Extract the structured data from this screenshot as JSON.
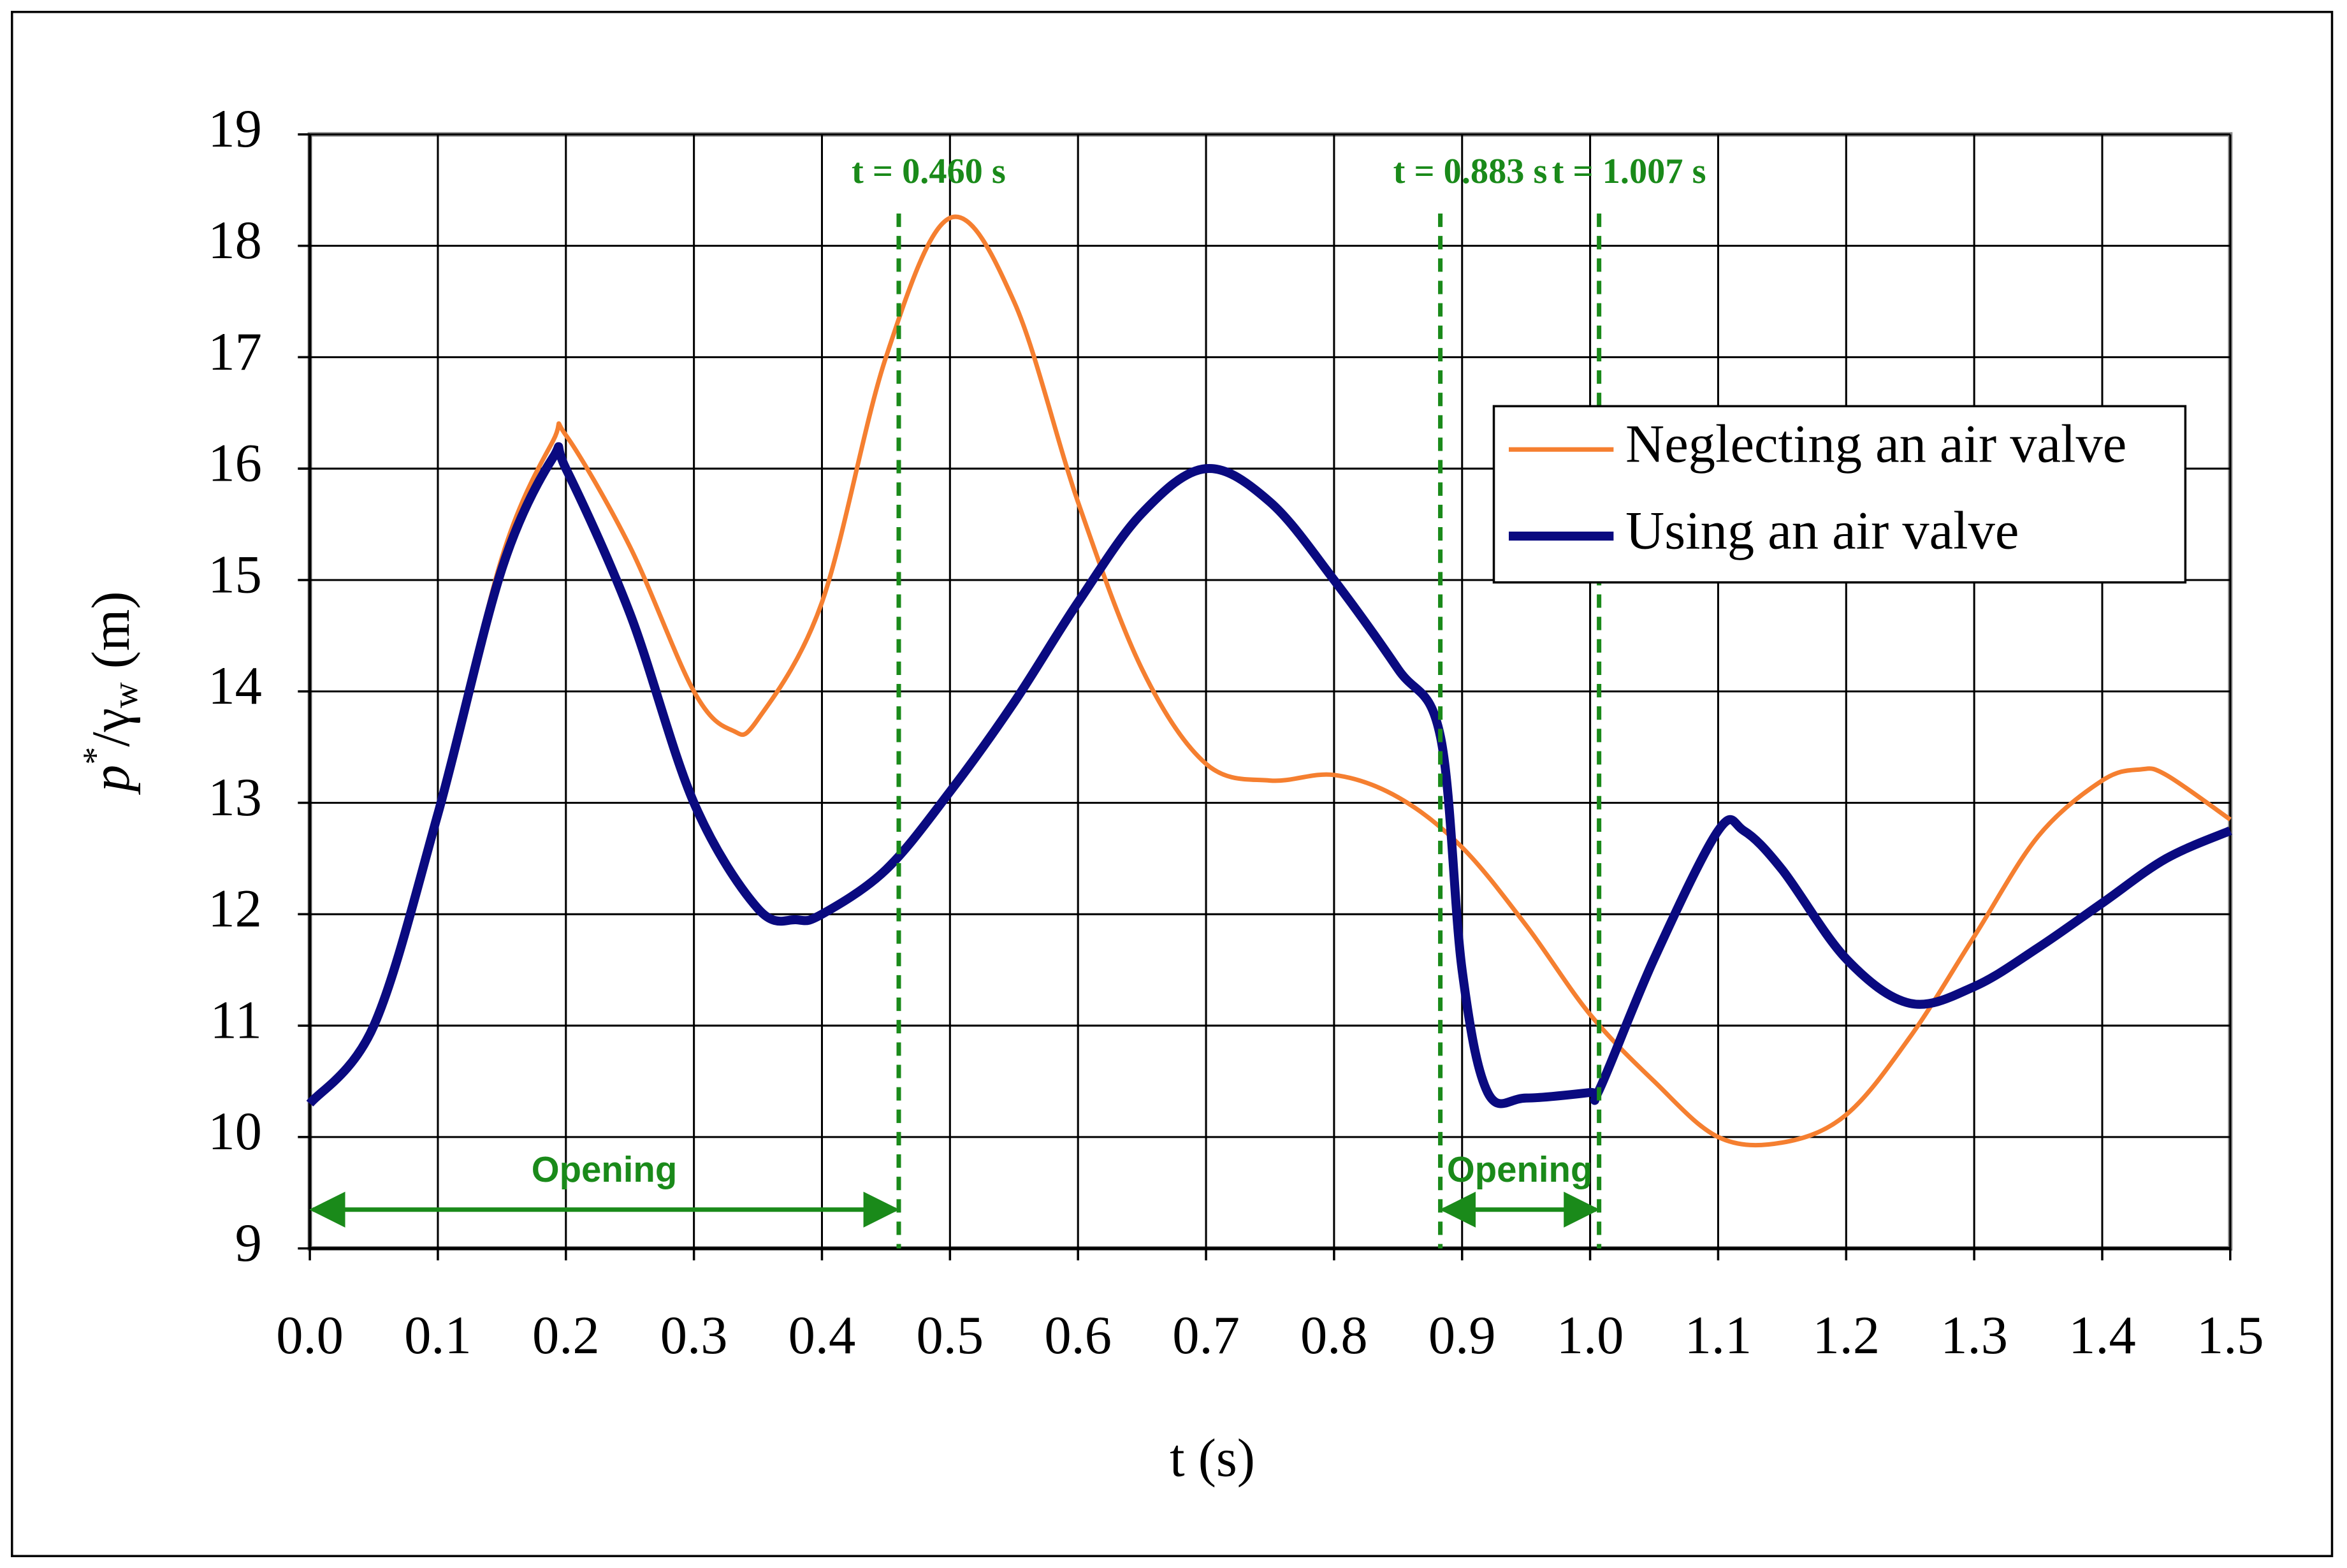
{
  "chart_data": {
    "type": "line",
    "x_label": "t (s)",
    "y_label_parts": [
      "p",
      "*",
      "/γ",
      "w",
      " (m)"
    ],
    "xlim": [
      0,
      1.5
    ],
    "ylim": [
      9,
      19
    ],
    "xticks": [
      {
        "value": 0,
        "label": "0.0"
      },
      0.1,
      0.2,
      0.3,
      0.4,
      0.5,
      0.6,
      0.7,
      0.8,
      0.9,
      {
        "value": 1,
        "label": "1.0"
      },
      1.1,
      1.2,
      1.3,
      1.4,
      1.5
    ],
    "yticks": [
      9,
      10,
      11,
      12,
      13,
      14,
      15,
      16,
      17,
      18,
      19
    ],
    "grid": true,
    "legend_position": "upper right",
    "series": [
      {
        "name": "Neglecting an air valve",
        "color": "#f57f30",
        "width": 3,
        "x": [
          0,
          0.05,
          0.1,
          0.15,
          0.19,
          0.2,
          0.25,
          0.3,
          0.33,
          0.35,
          0.4,
          0.45,
          0.5,
          0.55,
          0.6,
          0.65,
          0.7,
          0.75,
          0.8,
          0.85,
          0.9,
          0.95,
          1.0,
          1.05,
          1.1,
          1.15,
          1.2,
          1.25,
          1.3,
          1.35,
          1.4,
          1.43,
          1.45,
          1.5
        ],
        "values": [
          10.3,
          11.0,
          12.9,
          15.2,
          16.25,
          16.3,
          15.3,
          14.0,
          13.65,
          13.75,
          14.8,
          17.0,
          18.25,
          17.5,
          15.7,
          14.2,
          13.35,
          13.2,
          13.25,
          13.05,
          12.6,
          11.9,
          11.1,
          10.5,
          10.0,
          9.95,
          10.2,
          10.9,
          11.8,
          12.7,
          13.2,
          13.3,
          13.25,
          12.85
        ]
      },
      {
        "name": "Using an air valve",
        "color": "#0a0a80",
        "width": 6,
        "x": [
          0,
          0.05,
          0.1,
          0.15,
          0.19,
          0.2,
          0.25,
          0.3,
          0.35,
          0.38,
          0.4,
          0.45,
          0.5,
          0.55,
          0.6,
          0.65,
          0.7,
          0.75,
          0.8,
          0.85,
          0.883,
          0.9,
          0.92,
          0.95,
          1.0,
          1.007,
          1.05,
          1.1,
          1.12,
          1.15,
          1.2,
          1.25,
          1.3,
          1.35,
          1.4,
          1.45,
          1.5
        ],
        "values": [
          10.3,
          11.0,
          12.9,
          15.1,
          16.1,
          16.0,
          14.7,
          13.0,
          12.05,
          11.95,
          12.0,
          12.4,
          13.1,
          13.9,
          14.8,
          15.6,
          16.0,
          15.7,
          15.0,
          14.2,
          13.6,
          11.5,
          10.4,
          10.35,
          10.4,
          10.42,
          11.6,
          12.75,
          12.75,
          12.4,
          11.6,
          11.2,
          11.35,
          11.7,
          12.1,
          12.5,
          12.75
        ]
      }
    ],
    "vlines": [
      {
        "value": 0.46,
        "label": "t = 0.460 s"
      },
      {
        "value": 0.883,
        "label": "t = 0.883 s"
      },
      {
        "value": 1.007,
        "label": "t = 1.007 s"
      }
    ],
    "vline_color": "#1a8a1a",
    "arrows": [
      {
        "text": "Opening",
        "from": 0,
        "to": 0.46
      },
      {
        "text": "Opening",
        "from": 0.883,
        "to": 1.007
      }
    ]
  }
}
